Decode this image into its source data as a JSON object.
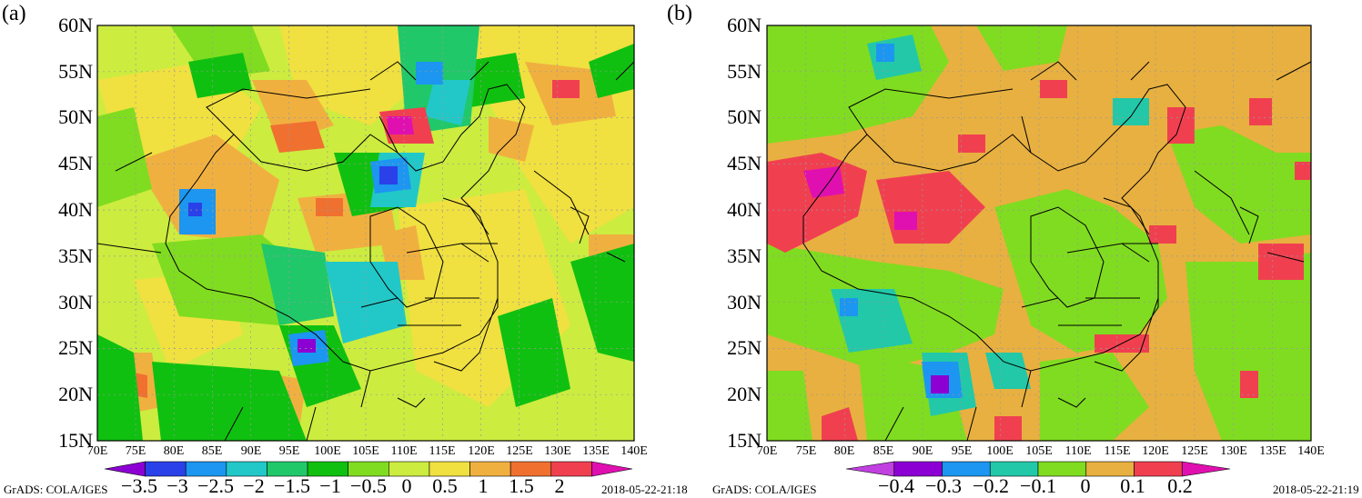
{
  "panels": [
    {
      "tag": "(a)",
      "lat_labels": [
        "60N",
        "55N",
        "50N",
        "45N",
        "40N",
        "35N",
        "30N",
        "25N",
        "20N",
        "15N"
      ],
      "lon_labels": [
        "70E",
        "75E",
        "80E",
        "85E",
        "90E",
        "95E",
        "100E",
        "105E",
        "110E",
        "115E",
        "120E",
        "125E",
        "130E",
        "135E",
        "140E"
      ],
      "colorbar": {
        "labels": [
          "−3.5",
          "−3",
          "−2.5",
          "−2",
          "−1.5",
          "−1",
          "−0.5",
          "0",
          "0.5",
          "1",
          "1.5",
          "2"
        ],
        "colors": [
          "#8c00d4",
          "#2a40e8",
          "#1c96f0",
          "#22c8c8",
          "#20c86a",
          "#10c010",
          "#80dc20",
          "#ccec40",
          "#f0e040",
          "#f0b040",
          "#f07030",
          "#f04050",
          "#e010b0"
        ]
      },
      "credit": "GrADS: COLA/IGES",
      "timestamp": "2018-05-22-21:18"
    },
    {
      "tag": "(b)",
      "lat_labels": [
        "60N",
        "55N",
        "50N",
        "45N",
        "40N",
        "35N",
        "30N",
        "25N",
        "20N",
        "15N"
      ],
      "lon_labels": [
        "70E",
        "75E",
        "80E",
        "85E",
        "90E",
        "95E",
        "100E",
        "105E",
        "110E",
        "115E",
        "120E",
        "125E",
        "130E",
        "135E",
        "140E"
      ],
      "colorbar": {
        "labels": [
          "−0.4",
          "−0.3",
          "−0.2",
          "−0.1",
          "0",
          "0.1",
          "0.2"
        ],
        "colors": [
          "#c040e0",
          "#8c00d4",
          "#1c96f0",
          "#22c8a8",
          "#80dc20",
          "#e8b040",
          "#f04050",
          "#e010b0"
        ]
      },
      "credit": "GrADS: COLA/IGES",
      "timestamp": "2018-05-22-21:19"
    }
  ]
}
